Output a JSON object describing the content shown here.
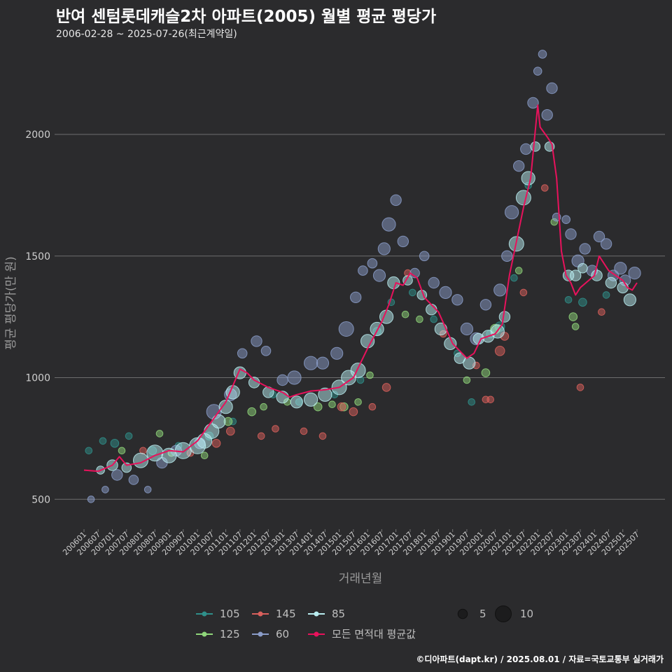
{
  "header": {
    "title": "반여 센텀롯데캐슬2차 아파트(2005) 월별 평균 평당가",
    "subtitle": "2006-02-28 ~ 2025-07-26(최근계약일)"
  },
  "credit": "©디아파트(dapt.kr) / 2025.08.01 / 자료=국토교통부 실거래가",
  "colors": {
    "background": "#2b2b2d",
    "grid": "#6e6e6e",
    "avg_line": "#e8125c",
    "s105": "#2f8f8a",
    "s125": "#8fd67a",
    "s145": "#d9605c",
    "s60": "#8a9cc8",
    "s85": "#b8ecef"
  },
  "chart_data": {
    "type": "scatter",
    "xlabel": "거래년월",
    "ylabel": "평균 평당가(만 원)",
    "x_range": [
      "2006-01",
      "2025-07"
    ],
    "ylim": [
      400,
      2380
    ],
    "y_ticks": [
      500,
      1000,
      1500,
      2000
    ],
    "x_ticks": [
      "200601",
      "200607",
      "200701",
      "200707",
      "200801",
      "200807",
      "200901",
      "200907",
      "201001",
      "201007",
      "201101",
      "201107",
      "201201",
      "201207",
      "201301",
      "201307",
      "201401",
      "201407",
      "201501",
      "201507",
      "201601",
      "201607",
      "201701",
      "201707",
      "201801",
      "201807",
      "201901",
      "201907",
      "202001",
      "202007",
      "202101",
      "202107",
      "202201",
      "202207",
      "202301",
      "202307",
      "202401",
      "202407",
      "202501",
      "202507"
    ],
    "grid": "horizontal",
    "legend": {
      "position": "bottom",
      "series_items": [
        {
          "key": "s105",
          "label": "105"
        },
        {
          "key": "s145",
          "label": "145"
        },
        {
          "key": "s85",
          "label": "85"
        },
        {
          "key": "s125",
          "label": "125"
        },
        {
          "key": "s60",
          "label": "60"
        },
        {
          "key": "avg",
          "label": "모든 면적대 평균값"
        }
      ],
      "size_items": [
        {
          "value": 5,
          "label": "5"
        },
        {
          "value": 10,
          "label": "10"
        }
      ]
    },
    "avg_line": [
      [
        "2006-01",
        620
      ],
      [
        "2006-07",
        615
      ],
      [
        "2007-01",
        640
      ],
      [
        "2007-04",
        675
      ],
      [
        "2007-07",
        640
      ],
      [
        "2008-01",
        650
      ],
      [
        "2008-07",
        680
      ],
      [
        "2009-01",
        700
      ],
      [
        "2009-07",
        695
      ],
      [
        "2010-01",
        740
      ],
      [
        "2010-07",
        820
      ],
      [
        "2011-01",
        900
      ],
      [
        "2011-05",
        990
      ],
      [
        "2011-07",
        1035
      ],
      [
        "2011-10",
        1020
      ],
      [
        "2012-01",
        990
      ],
      [
        "2012-07",
        960
      ],
      [
        "2013-01",
        940
      ],
      [
        "2013-04",
        920
      ],
      [
        "2013-07",
        930
      ],
      [
        "2014-01",
        945
      ],
      [
        "2014-07",
        950
      ],
      [
        "2015-01",
        960
      ],
      [
        "2015-07",
        1000
      ],
      [
        "2016-01",
        1120
      ],
      [
        "2016-07",
        1230
      ],
      [
        "2016-10",
        1300
      ],
      [
        "2017-01",
        1390
      ],
      [
        "2017-04",
        1380
      ],
      [
        "2017-07",
        1430
      ],
      [
        "2017-10",
        1410
      ],
      [
        "2018-01",
        1330
      ],
      [
        "2018-07",
        1270
      ],
      [
        "2019-01",
        1140
      ],
      [
        "2019-07",
        1080
      ],
      [
        "2019-10",
        1100
      ],
      [
        "2020-01",
        1160
      ],
      [
        "2020-07",
        1180
      ],
      [
        "2020-10",
        1220
      ],
      [
        "2021-01",
        1420
      ],
      [
        "2021-07",
        1700
      ],
      [
        "2021-10",
        1820
      ],
      [
        "2022-01",
        2120
      ],
      [
        "2022-02",
        2030
      ],
      [
        "2022-05",
        1990
      ],
      [
        "2022-07",
        1960
      ],
      [
        "2022-09",
        1820
      ],
      [
        "2022-11",
        1520
      ],
      [
        "2023-01",
        1420
      ],
      [
        "2023-03",
        1390
      ],
      [
        "2023-05",
        1340
      ],
      [
        "2023-07",
        1370
      ],
      [
        "2024-01",
        1420
      ],
      [
        "2024-03",
        1500
      ],
      [
        "2024-07",
        1440
      ],
      [
        "2025-01",
        1400
      ],
      [
        "2025-03",
        1370
      ],
      [
        "2025-05",
        1360
      ],
      [
        "2025-07",
        1390
      ]
    ],
    "series": [
      {
        "key": "s105",
        "name": "105",
        "points": [
          [
            "2006-03",
            700,
            3
          ],
          [
            "2006-09",
            740,
            3
          ],
          [
            "2007-02",
            730,
            4
          ],
          [
            "2007-08",
            760,
            3
          ],
          [
            "2008-06",
            700,
            4
          ],
          [
            "2009-05",
            720,
            3
          ],
          [
            "2010-06",
            760,
            4
          ],
          [
            "2011-04",
            820,
            3
          ],
          [
            "2012-09",
            930,
            3
          ],
          [
            "2013-08",
            900,
            3
          ],
          [
            "2014-11",
            930,
            3
          ],
          [
            "2015-10",
            990,
            3
          ],
          [
            "2016-05",
            1190,
            4
          ],
          [
            "2016-11",
            1310,
            3
          ],
          [
            "2017-08",
            1350,
            3
          ],
          [
            "2018-05",
            1240,
            3
          ],
          [
            "2019-03",
            1100,
            3
          ],
          [
            "2019-09",
            900,
            3
          ],
          [
            "2020-05",
            1180,
            4
          ],
          [
            "2020-09",
            1210,
            5
          ],
          [
            "2021-03",
            1410,
            3
          ],
          [
            "2021-09",
            1790,
            3
          ],
          [
            "2023-02",
            1320,
            3
          ],
          [
            "2023-08",
            1310,
            4
          ],
          [
            "2024-06",
            1340,
            3
          ]
        ]
      },
      {
        "key": "s125",
        "name": "125",
        "points": [
          [
            "2007-05",
            700,
            3
          ],
          [
            "2008-09",
            770,
            3
          ],
          [
            "2009-02",
            690,
            3
          ],
          [
            "2010-04",
            680,
            3
          ],
          [
            "2011-02",
            820,
            4
          ],
          [
            "2011-12",
            860,
            4
          ],
          [
            "2012-05",
            880,
            3
          ],
          [
            "2013-03",
            900,
            3
          ],
          [
            "2014-04",
            880,
            4
          ],
          [
            "2014-10",
            890,
            3
          ],
          [
            "2015-03",
            880,
            4
          ],
          [
            "2015-09",
            900,
            3
          ],
          [
            "2016-02",
            1010,
            3
          ],
          [
            "2017-05",
            1260,
            3
          ],
          [
            "2017-11",
            1240,
            3
          ],
          [
            "2019-07",
            990,
            3
          ],
          [
            "2020-03",
            1020,
            4
          ],
          [
            "2020-07",
            1200,
            5
          ],
          [
            "2021-05",
            1440,
            3
          ],
          [
            "2022-08",
            1640,
            3
          ],
          [
            "2023-04",
            1250,
            4
          ],
          [
            "2023-05",
            1210,
            3
          ]
        ]
      },
      {
        "key": "s145",
        "name": "145",
        "points": [
          [
            "2008-02",
            700,
            3
          ],
          [
            "2009-10",
            690,
            3
          ],
          [
            "2010-09",
            730,
            4
          ],
          [
            "2011-03",
            780,
            4
          ],
          [
            "2012-04",
            760,
            3
          ],
          [
            "2012-10",
            790,
            3
          ],
          [
            "2013-10",
            780,
            3
          ],
          [
            "2014-06",
            760,
            3
          ],
          [
            "2015-02",
            880,
            4
          ],
          [
            "2015-07",
            860,
            4
          ],
          [
            "2016-03",
            880,
            3
          ],
          [
            "2016-09",
            960,
            4
          ],
          [
            "2017-06",
            1430,
            3
          ],
          [
            "2018-09",
            1180,
            3
          ],
          [
            "2019-11",
            1050,
            3
          ],
          [
            "2020-03",
            910,
            3
          ],
          [
            "2020-05",
            910,
            3
          ],
          [
            "2020-09",
            1110,
            5
          ],
          [
            "2020-11",
            1170,
            4
          ],
          [
            "2021-07",
            1350,
            3
          ],
          [
            "2022-04",
            1780,
            3
          ],
          [
            "2023-07",
            960,
            3
          ],
          [
            "2024-04",
            1270,
            3
          ]
        ]
      },
      {
        "key": "s60",
        "name": "60",
        "points": [
          [
            "2006-04",
            500,
            3
          ],
          [
            "2006-10",
            540,
            3
          ],
          [
            "2007-03",
            600,
            6
          ],
          [
            "2007-10",
            580,
            5
          ],
          [
            "2008-04",
            540,
            3
          ],
          [
            "2008-10",
            650,
            6
          ],
          [
            "2009-04",
            700,
            6
          ],
          [
            "2010-02",
            730,
            6
          ],
          [
            "2010-08",
            860,
            9
          ],
          [
            "2011-03",
            930,
            7
          ],
          [
            "2011-08",
            1100,
            5
          ],
          [
            "2012-02",
            1150,
            6
          ],
          [
            "2012-06",
            1110,
            5
          ],
          [
            "2013-01",
            990,
            6
          ],
          [
            "2013-06",
            1000,
            8
          ],
          [
            "2014-01",
            1060,
            8
          ],
          [
            "2014-06",
            1060,
            7
          ],
          [
            "2014-12",
            1100,
            7
          ],
          [
            "2015-04",
            1200,
            9
          ],
          [
            "2015-08",
            1330,
            6
          ],
          [
            "2015-11",
            1440,
            5
          ],
          [
            "2016-03",
            1470,
            5
          ],
          [
            "2016-06",
            1420,
            7
          ],
          [
            "2016-08",
            1530,
            7
          ],
          [
            "2016-10",
            1630,
            8
          ],
          [
            "2017-01",
            1730,
            6
          ],
          [
            "2017-04",
            1560,
            6
          ],
          [
            "2017-09",
            1430,
            5
          ],
          [
            "2018-01",
            1500,
            5
          ],
          [
            "2018-05",
            1390,
            6
          ],
          [
            "2018-10",
            1350,
            7
          ],
          [
            "2019-03",
            1320,
            6
          ],
          [
            "2019-07",
            1200,
            7
          ],
          [
            "2019-11",
            1160,
            7
          ],
          [
            "2020-03",
            1300,
            6
          ],
          [
            "2020-09",
            1360,
            7
          ],
          [
            "2020-12",
            1500,
            6
          ],
          [
            "2021-02",
            1680,
            8
          ],
          [
            "2021-05",
            1870,
            6
          ],
          [
            "2021-08",
            1940,
            6
          ],
          [
            "2021-11",
            2130,
            6
          ],
          [
            "2022-01",
            2260,
            4
          ],
          [
            "2022-03",
            2330,
            4
          ],
          [
            "2022-05",
            2080,
            6
          ],
          [
            "2022-07",
            2190,
            6
          ],
          [
            "2022-09",
            1660,
            4
          ],
          [
            "2023-01",
            1650,
            4
          ],
          [
            "2023-03",
            1590,
            6
          ],
          [
            "2023-06",
            1480,
            7
          ],
          [
            "2023-09",
            1530,
            6
          ],
          [
            "2023-12",
            1440,
            6
          ],
          [
            "2024-03",
            1580,
            6
          ],
          [
            "2024-06",
            1550,
            6
          ],
          [
            "2024-09",
            1420,
            6
          ],
          [
            "2024-12",
            1450,
            7
          ],
          [
            "2025-02",
            1400,
            6
          ],
          [
            "2025-06",
            1430,
            7
          ]
        ]
      },
      {
        "key": "s85",
        "name": "85",
        "points": [
          [
            "2006-08",
            620,
            4
          ],
          [
            "2007-01",
            640,
            6
          ],
          [
            "2007-07",
            630,
            5
          ],
          [
            "2008-01",
            660,
            9
          ],
          [
            "2008-07",
            690,
            10
          ],
          [
            "2009-01",
            680,
            9
          ],
          [
            "2009-07",
            700,
            10
          ],
          [
            "2010-01",
            720,
            10
          ],
          [
            "2010-04",
            740,
            9
          ],
          [
            "2010-07",
            780,
            9
          ],
          [
            "2010-10",
            820,
            8
          ],
          [
            "2011-01",
            880,
            8
          ],
          [
            "2011-04",
            940,
            8
          ],
          [
            "2011-07",
            1020,
            7
          ],
          [
            "2012-01",
            980,
            6
          ],
          [
            "2012-07",
            940,
            6
          ],
          [
            "2013-01",
            920,
            7
          ],
          [
            "2013-07",
            900,
            7
          ],
          [
            "2014-01",
            910,
            8
          ],
          [
            "2014-07",
            930,
            8
          ],
          [
            "2015-01",
            960,
            9
          ],
          [
            "2015-05",
            1000,
            9
          ],
          [
            "2015-09",
            1030,
            9
          ],
          [
            "2016-01",
            1150,
            8
          ],
          [
            "2016-05",
            1200,
            8
          ],
          [
            "2016-09",
            1250,
            8
          ],
          [
            "2016-12",
            1390,
            7
          ],
          [
            "2017-06",
            1400,
            5
          ],
          [
            "2017-12",
            1340,
            5
          ],
          [
            "2018-04",
            1280,
            6
          ],
          [
            "2018-08",
            1200,
            7
          ],
          [
            "2018-12",
            1140,
            7
          ],
          [
            "2019-04",
            1080,
            6
          ],
          [
            "2019-08",
            1060,
            7
          ],
          [
            "2019-12",
            1160,
            6
          ],
          [
            "2020-04",
            1170,
            7
          ],
          [
            "2020-08",
            1190,
            8
          ],
          [
            "2020-11",
            1250,
            6
          ],
          [
            "2021-04",
            1550,
            9
          ],
          [
            "2021-07",
            1740,
            9
          ],
          [
            "2021-09",
            1820,
            8
          ],
          [
            "2021-12",
            1950,
            5
          ],
          [
            "2022-06",
            1950,
            5
          ],
          [
            "2023-02",
            1420,
            6
          ],
          [
            "2023-05",
            1420,
            6
          ],
          [
            "2023-08",
            1450,
            5
          ],
          [
            "2024-02",
            1420,
            6
          ],
          [
            "2024-08",
            1390,
            6
          ],
          [
            "2025-01",
            1370,
            6
          ],
          [
            "2025-04",
            1320,
            7
          ]
        ]
      }
    ]
  }
}
